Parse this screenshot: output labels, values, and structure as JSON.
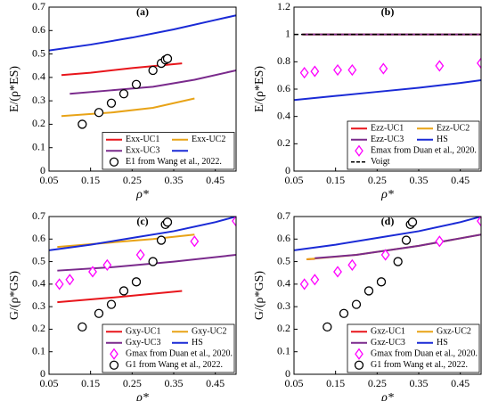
{
  "chart_data": [
    {
      "type": "line",
      "title": "(a)",
      "xlabel": "ρ*",
      "ylabel": "E/(ρ*ES)",
      "xlim": [
        0.05,
        0.5
      ],
      "xticks": [
        0.05,
        0.15,
        0.25,
        0.35,
        0.45
      ],
      "ylim": [
        0,
        0.7
      ],
      "yticks": [
        0,
        0.1,
        0.2,
        0.3,
        0.4,
        0.5,
        0.6,
        0.7
      ],
      "legend": "lower right",
      "series": [
        {
          "name": "Exx-UC1",
          "color": "#e8151b",
          "x": [
            0.08,
            0.15,
            0.25,
            0.37
          ],
          "values": [
            0.41,
            0.42,
            0.44,
            0.46
          ]
        },
        {
          "name": "Exx-UC2",
          "color": "#e8a317",
          "x": [
            0.08,
            0.2,
            0.3,
            0.4
          ],
          "values": [
            0.235,
            0.25,
            0.27,
            0.31
          ]
        },
        {
          "name": "Exx-UC3",
          "color": "#7a2a8c",
          "x": [
            0.1,
            0.2,
            0.3,
            0.4,
            0.5
          ],
          "values": [
            0.33,
            0.345,
            0.36,
            0.39,
            0.43
          ]
        },
        {
          "color": "#1a2ad6",
          "x": [
            0.05,
            0.15,
            0.25,
            0.35,
            0.45,
            0.5
          ],
          "values": [
            0.515,
            0.54,
            0.57,
            0.605,
            0.645,
            0.665
          ]
        },
        {
          "name": "E1 from Wang et al., 2022.",
          "color": "#000000",
          "marker": "circle",
          "x": [
            0.13,
            0.17,
            0.2,
            0.23,
            0.26,
            0.3,
            0.32,
            0.33,
            0.335
          ],
          "values": [
            0.2,
            0.25,
            0.29,
            0.33,
            0.37,
            0.43,
            0.46,
            0.475,
            0.48
          ]
        }
      ]
    },
    {
      "type": "line",
      "title": "(b)",
      "xlabel": "ρ*",
      "ylabel": "E/(ρ*ES)",
      "xlim": [
        0.05,
        0.5
      ],
      "xticks": [
        0.05,
        0.15,
        0.25,
        0.35,
        0.45
      ],
      "ylim": [
        0,
        1.2
      ],
      "yticks": [
        0,
        0.2,
        0.4,
        0.6,
        0.8,
        1,
        1.2
      ],
      "legend": "lower right",
      "series": [
        {
          "name": "Ezz-UC1",
          "color": "#e8151b",
          "x": [
            0.07,
            0.5
          ],
          "values": [
            1,
            1
          ]
        },
        {
          "name": "Ezz-UC2",
          "color": "#e8a317",
          "x": [
            0.07,
            0.5
          ],
          "values": [
            1,
            1
          ]
        },
        {
          "name": "Ezz-UC3",
          "color": "#7a2a8c",
          "x": [
            0.07,
            0.5
          ],
          "values": [
            1,
            1
          ]
        },
        {
          "name": "HS",
          "color": "#1a2ad6",
          "x": [
            0.05,
            0.15,
            0.25,
            0.35,
            0.45,
            0.5
          ],
          "values": [
            0.52,
            0.55,
            0.58,
            0.61,
            0.645,
            0.665
          ]
        },
        {
          "name": "Emax from Duan et al., 2020.",
          "color": "#ff00ff",
          "marker": "diamond",
          "x": [
            0.075,
            0.1,
            0.155,
            0.19,
            0.265,
            0.4,
            0.5
          ],
          "values": [
            0.72,
            0.73,
            0.74,
            0.74,
            0.75,
            0.77,
            0.79
          ]
        },
        {
          "name": "Voigt",
          "color": "#000000",
          "linestyle": "dashed",
          "x": [
            0.05,
            0.5
          ],
          "values": [
            1,
            1
          ]
        }
      ]
    },
    {
      "type": "line",
      "title": "(c)",
      "xlabel": "ρ*",
      "ylabel": "G/(ρ*GS)",
      "xlim": [
        0.05,
        0.5
      ],
      "xticks": [
        0.05,
        0.15,
        0.25,
        0.35,
        0.45
      ],
      "ylim": [
        0,
        0.7
      ],
      "yticks": [
        0,
        0.1,
        0.2,
        0.3,
        0.4,
        0.5,
        0.6,
        0.7
      ],
      "legend": "lower right",
      "series": [
        {
          "name": "Gxy-UC1",
          "color": "#e8151b",
          "x": [
            0.07,
            0.2,
            0.37
          ],
          "values": [
            0.32,
            0.34,
            0.37
          ]
        },
        {
          "name": "Gxy-UC2",
          "color": "#e8a317",
          "x": [
            0.07,
            0.2,
            0.3,
            0.4
          ],
          "values": [
            0.565,
            0.585,
            0.6,
            0.62
          ]
        },
        {
          "name": "Gxy-UC3",
          "color": "#7a2a8c",
          "x": [
            0.07,
            0.2,
            0.35,
            0.5
          ],
          "values": [
            0.46,
            0.475,
            0.5,
            0.53
          ]
        },
        {
          "name": "HS",
          "color": "#1a2ad6",
          "x": [
            0.05,
            0.15,
            0.25,
            0.35,
            0.45,
            0.5
          ],
          "values": [
            0.55,
            0.575,
            0.605,
            0.635,
            0.675,
            0.7
          ]
        },
        {
          "name": "Gmax from Duan et al., 2020.",
          "color": "#ff00ff",
          "marker": "diamond",
          "x": [
            0.075,
            0.1,
            0.155,
            0.19,
            0.27,
            0.4,
            0.5
          ],
          "values": [
            0.4,
            0.42,
            0.455,
            0.485,
            0.53,
            0.59,
            0.68
          ]
        },
        {
          "name": "G1 from Wang et al., 2022.",
          "color": "#000000",
          "marker": "circle",
          "x": [
            0.13,
            0.17,
            0.2,
            0.23,
            0.26,
            0.3,
            0.32,
            0.33,
            0.335
          ],
          "values": [
            0.21,
            0.27,
            0.31,
            0.37,
            0.41,
            0.5,
            0.595,
            0.665,
            0.675
          ]
        }
      ]
    },
    {
      "type": "line",
      "title": "(d)",
      "xlabel": "ρ*",
      "ylabel": "G/(ρ*GS)",
      "xlim": [
        0.05,
        0.5
      ],
      "xticks": [
        0.05,
        0.15,
        0.25,
        0.35,
        0.45
      ],
      "ylim": [
        0,
        0.7
      ],
      "yticks": [
        0,
        0.1,
        0.2,
        0.3,
        0.4,
        0.5,
        0.6,
        0.7
      ],
      "legend": "lower right",
      "series": [
        {
          "name": "Gxz-UC1",
          "color": "#e8151b",
          "x": [
            0.08,
            0.1
          ],
          "values": [
            0.51,
            0.512
          ]
        },
        {
          "name": "Gxz-UC2",
          "color": "#e8a317",
          "x": [
            0.08,
            0.2,
            0.35,
            0.5
          ],
          "values": [
            0.51,
            0.53,
            0.57,
            0.62
          ]
        },
        {
          "name": "Gxz-UC3",
          "color": "#7a2a8c",
          "x": [
            0.1,
            0.2,
            0.35,
            0.5
          ],
          "values": [
            0.515,
            0.53,
            0.57,
            0.62
          ]
        },
        {
          "name": "HS",
          "color": "#1a2ad6",
          "x": [
            0.05,
            0.15,
            0.25,
            0.35,
            0.45,
            0.5
          ],
          "values": [
            0.55,
            0.575,
            0.605,
            0.635,
            0.675,
            0.7
          ]
        },
        {
          "name": "Gmax from Duan et al., 2020.",
          "color": "#ff00ff",
          "marker": "diamond",
          "x": [
            0.075,
            0.1,
            0.155,
            0.19,
            0.27,
            0.4,
            0.5
          ],
          "values": [
            0.4,
            0.42,
            0.455,
            0.485,
            0.53,
            0.59,
            0.68
          ]
        },
        {
          "name": "G1 from Wang et al., 2022.",
          "color": "#000000",
          "marker": "circle",
          "x": [
            0.13,
            0.17,
            0.2,
            0.23,
            0.26,
            0.3,
            0.32,
            0.33,
            0.335
          ],
          "values": [
            0.21,
            0.27,
            0.31,
            0.37,
            0.41,
            0.5,
            0.595,
            0.665,
            0.675
          ]
        }
      ]
    }
  ]
}
